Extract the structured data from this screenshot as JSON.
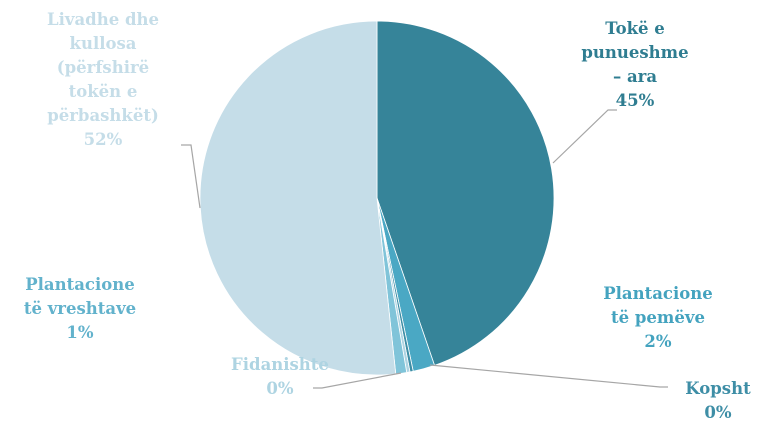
{
  "chart_data": {
    "type": "pie",
    "title": "",
    "legend": "none",
    "series": [
      {
        "slices": [
          {
            "name_lines": [
              "Tokë e",
              "punueshme",
              "– ara"
            ],
            "pct_label": "45%",
            "value": 45,
            "color": "#368499",
            "label_color": "#2f7d91"
          },
          {
            "name_lines": [
              "Plantacione",
              "të pemëve"
            ],
            "pct_label": "2%",
            "value": 2,
            "color": "#4aa8c4",
            "label_color": "#44a3bf"
          },
          {
            "name_lines": [
              "Kopsht"
            ],
            "pct_label": "0%",
            "value": 0.3,
            "color": "#3e8ea6",
            "label_color": "#3e8ea6"
          },
          {
            "name_lines": [
              "Fidanishte"
            ],
            "pct_label": "0%",
            "value": 0.3,
            "color": "#aed4e2",
            "label_color": "#aed4e2"
          },
          {
            "name_lines": [
              "Plantacione",
              "të vreshtave"
            ],
            "pct_label": "1%",
            "value": 1,
            "color": "#80c4d9",
            "label_color": "#62b2cc"
          },
          {
            "name_lines": [
              "Livadhe dhe",
              "kullosa",
              "(përfshirë",
              "tokën e",
              "përbashkët)"
            ],
            "pct_label": "52%",
            "value": 52,
            "color": "#c5dde8",
            "label_color": "#c5dde8"
          }
        ]
      }
    ]
  }
}
